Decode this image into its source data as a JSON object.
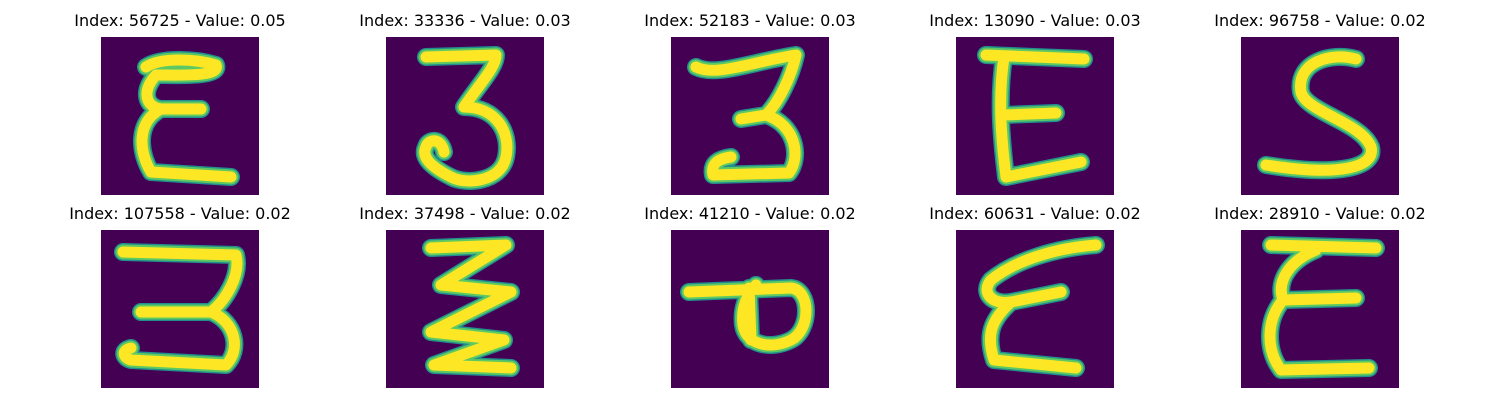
{
  "colormap": {
    "background": "#440154",
    "edge": "#21908d",
    "mid": "#5ec962",
    "peak": "#fde725"
  },
  "samples": [
    {
      "title": "Index: 56725 - Value: 0.05",
      "glyph": "epsilon-rounded"
    },
    {
      "title": "Index: 33336 - Value: 0.03",
      "glyph": "three"
    },
    {
      "title": "Index: 52183 - Value: 0.03",
      "glyph": "three-flat-top"
    },
    {
      "title": "Index: 13090 - Value: 0.03",
      "glyph": "letter-e"
    },
    {
      "title": "Index: 96758 - Value: 0.02",
      "glyph": "five-s"
    },
    {
      "title": "Index: 107558 - Value: 0.02",
      "glyph": "three-wide"
    },
    {
      "title": "Index: 37498 - Value: 0.02",
      "glyph": "zigzag"
    },
    {
      "title": "Index: 41210 - Value: 0.02",
      "glyph": "rotated-p"
    },
    {
      "title": "Index: 60631 - Value: 0.02",
      "glyph": "epsilon-slanted"
    },
    {
      "title": "Index: 28910 - Value: 0.02",
      "glyph": "epsilon-thin"
    }
  ]
}
